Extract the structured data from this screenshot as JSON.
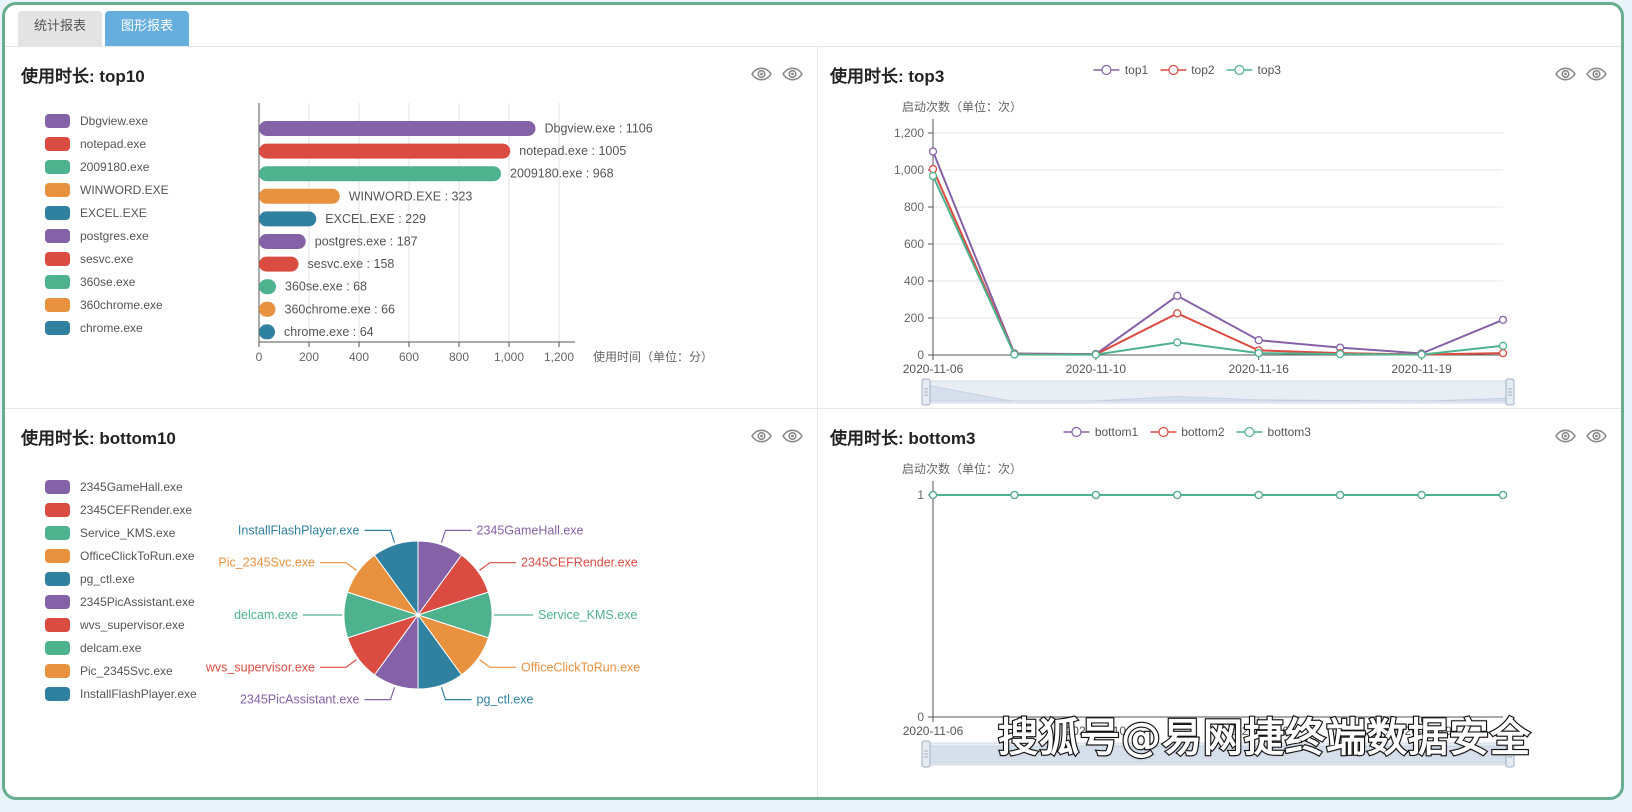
{
  "tabs": [
    {
      "label": "统计报表",
      "active": false
    },
    {
      "label": "图形报表",
      "active": true
    }
  ],
  "palette": [
    "#8561a8",
    "#da4b42",
    "#4fb28f",
    "#e8913f",
    "#30809f"
  ],
  "accent_colors": {
    "active_tab": "#66aede",
    "page_border": "#67ae91"
  },
  "watermark": "搜狐号@易网捷终端数据安全",
  "icons": {
    "panel_actions": [
      "eye",
      "eye"
    ]
  },
  "chart_data": [
    {
      "id": "top10",
      "type": "bar",
      "orientation": "horizontal",
      "title": "使用时长: top10",
      "xlabel": "使用时间（单位：分）",
      "xlim": [
        0,
        1200
      ],
      "xticks": [
        0,
        200,
        400,
        600,
        800,
        1000,
        1200
      ],
      "label_format": "{name} : {value}",
      "categories": [
        "Dbgview.exe",
        "notepad.exe",
        "2009180.exe",
        "WINWORD.EXE",
        "EXCEL.EXE",
        "postgres.exe",
        "sesvc.exe",
        "360se.exe",
        "360chrome.exe",
        "chrome.exe"
      ],
      "values": [
        1106,
        1005,
        968,
        323,
        229,
        187,
        158,
        68,
        66,
        64
      ]
    },
    {
      "id": "top3",
      "type": "line",
      "title": "使用时长: top3",
      "ylabel": "启动次数（单位：次）",
      "ylim": [
        0,
        1200
      ],
      "yticks": [
        0,
        200,
        400,
        600,
        800,
        1000,
        1200
      ],
      "n_points": 8,
      "x_tick_labels": [
        "2020-11-06",
        "2020-11-10",
        "2020-11-16",
        "2020-11-19"
      ],
      "x_tick_positions": [
        0,
        2,
        4,
        6
      ],
      "legend_position": "top-center",
      "grid": true,
      "has_datazoom_slider": true,
      "series": [
        {
          "name": "top1",
          "values": [
            1100,
            8,
            5,
            320,
            80,
            40,
            8,
            190
          ]
        },
        {
          "name": "top2",
          "values": [
            1005,
            5,
            3,
            225,
            25,
            10,
            3,
            10
          ]
        },
        {
          "name": "top3",
          "values": [
            968,
            3,
            2,
            68,
            10,
            5,
            2,
            50
          ]
        }
      ]
    },
    {
      "id": "bottom10",
      "type": "pie",
      "title": "使用时长: bottom10",
      "note_visual": "10 equal slices with colored leader-line labels",
      "categories": [
        "2345GameHall.exe",
        "2345CEFRender.exe",
        "Service_KMS.exe",
        "OfficeClickToRun.exe",
        "pg_ctl.exe",
        "2345PicAssistant.exe",
        "wvs_supervisor.exe",
        "delcam.exe",
        "Pic_2345Svc.exe",
        "InstallFlashPlayer.exe"
      ],
      "values": [
        1,
        1,
        1,
        1,
        1,
        1,
        1,
        1,
        1,
        1
      ]
    },
    {
      "id": "bottom3",
      "type": "line",
      "title": "使用时长: bottom3",
      "ylabel": "启动次数（单位：次）",
      "ylim": [
        0,
        1
      ],
      "yticks": [
        0,
        1
      ],
      "n_points": 8,
      "x_tick_labels": [
        "2020-11-06",
        "2020-11-10",
        "2020-11-16",
        "2020-11-19"
      ],
      "x_tick_positions": [
        0,
        2,
        4,
        6
      ],
      "legend_position": "top-center",
      "grid": true,
      "has_datazoom_slider": true,
      "series": [
        {
          "name": "bottom1",
          "values": [
            1,
            1,
            1,
            1,
            1,
            1,
            1,
            1
          ]
        },
        {
          "name": "bottom2",
          "values": [
            1,
            1,
            1,
            1,
            1,
            1,
            1,
            1
          ]
        },
        {
          "name": "bottom3",
          "values": [
            1,
            1,
            1,
            1,
            1,
            1,
            1,
            1
          ]
        }
      ]
    }
  ]
}
